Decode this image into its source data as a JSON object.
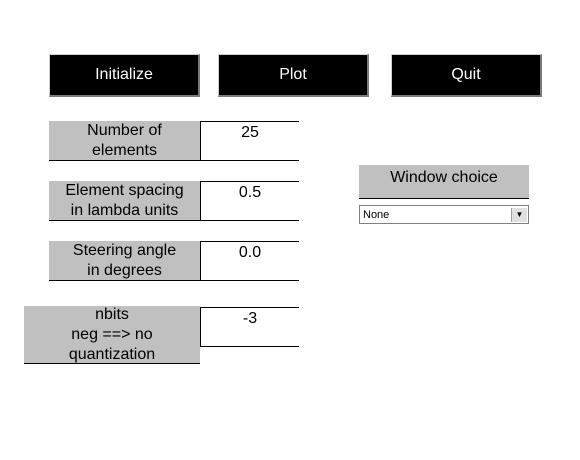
{
  "toolbar": {
    "initialize_label": "Initialize",
    "plot_label": "Plot",
    "quit_label": "Quit"
  },
  "params": {
    "elements": {
      "label": "Number of\nelements",
      "value": "25"
    },
    "spacing": {
      "label": "Element spacing\nin lambda units",
      "value": "0.5"
    },
    "steering": {
      "label": "Steering angle\nin degrees",
      "value": "0.0"
    },
    "nbits": {
      "label": "nbits\nneg ==> no\nquantization",
      "value": "-3"
    }
  },
  "window": {
    "label": "Window choice",
    "selected": "None"
  },
  "colors": {
    "button_bg": "#000000",
    "label_bg": "#c0c0c0"
  }
}
